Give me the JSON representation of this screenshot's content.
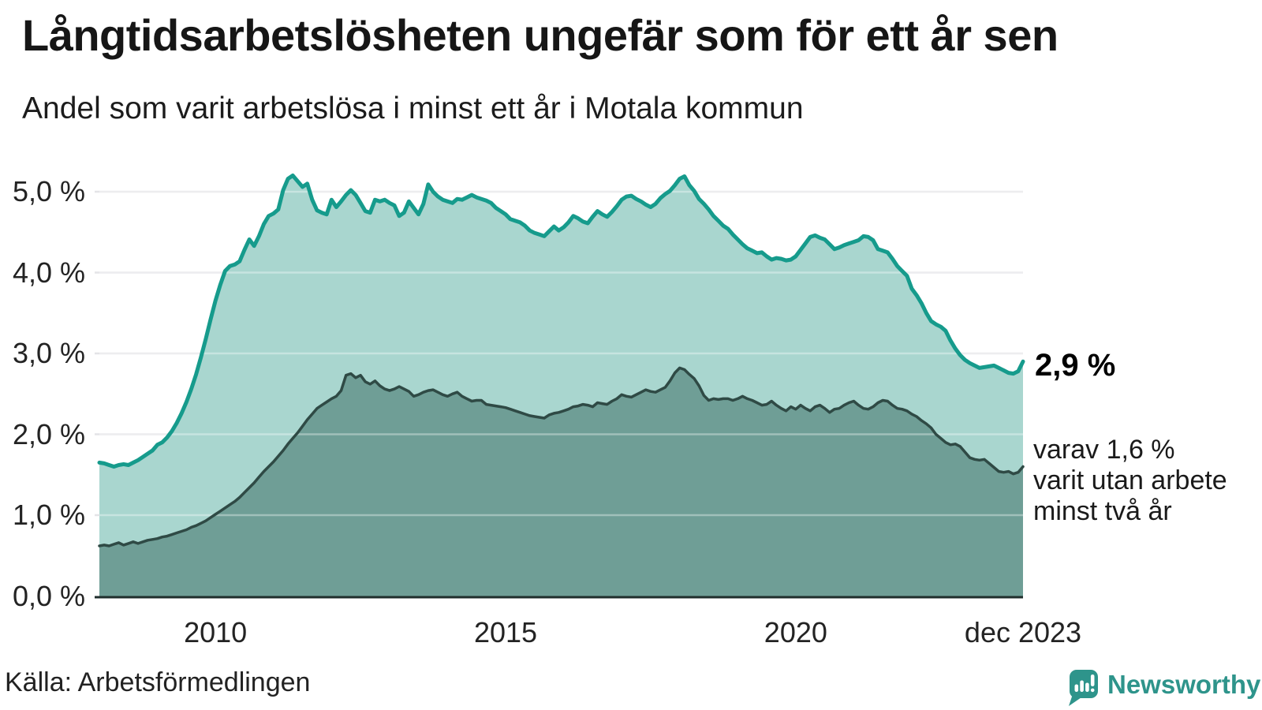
{
  "header": {
    "title": "Långtidsarbetslösheten ungefär som för ett år sen",
    "subtitle": "Andel som varit arbetslösa i minst ett år i Motala kommun"
  },
  "chart_data": {
    "type": "area",
    "title": "Långtidsarbetslösheten ungefär som för ett år sen",
    "subtitle": "Andel som varit arbetslösa i minst ett år i Motala kommun",
    "unit": "%",
    "frequency": "monthly",
    "x_start": "jan 2008",
    "x_end": "dec 2023",
    "ylim": [
      0,
      5.45
    ],
    "grid": true,
    "legend_position": "end-of-line-labels",
    "y_ticks": [
      {
        "value": 0,
        "label": "0,0 %"
      },
      {
        "value": 1,
        "label": "1,0 %"
      },
      {
        "value": 2,
        "label": "2,0 %"
      },
      {
        "value": 3,
        "label": "3,0 %"
      },
      {
        "value": 4,
        "label": "4,0 %"
      },
      {
        "value": 5,
        "label": "5,0 %"
      }
    ],
    "x_ticks": [
      {
        "month_index": 24,
        "label": "2010"
      },
      {
        "month_index": 84,
        "label": "2015"
      },
      {
        "month_index": 144,
        "label": "2020"
      },
      {
        "month_index": 191,
        "label": "dec 2023"
      }
    ],
    "series": [
      {
        "name": "Andel som varit arbetslösa i minst ett år",
        "end_label": "2,9 %",
        "final_value": 2.9,
        "color": "#169B8C",
        "fill": "#A9D6CF",
        "values": [
          1.65,
          1.64,
          1.62,
          1.6,
          1.62,
          1.63,
          1.62,
          1.65,
          1.68,
          1.72,
          1.76,
          1.8,
          1.87,
          1.9,
          1.96,
          2.04,
          2.14,
          2.26,
          2.4,
          2.56,
          2.74,
          2.95,
          3.18,
          3.42,
          3.65,
          3.85,
          4.02,
          4.08,
          4.1,
          4.14,
          4.28,
          4.41,
          4.33,
          4.45,
          4.6,
          4.7,
          4.73,
          4.78,
          5.02,
          5.16,
          5.2,
          5.13,
          5.06,
          5.1,
          4.9,
          4.77,
          4.74,
          4.72,
          4.9,
          4.81,
          4.88,
          4.96,
          5.02,
          4.96,
          4.86,
          4.76,
          4.74,
          4.9,
          4.88,
          4.9,
          4.86,
          4.83,
          4.7,
          4.74,
          4.88,
          4.8,
          4.72,
          4.85,
          5.09,
          5.0,
          4.94,
          4.9,
          4.88,
          4.86,
          4.91,
          4.9,
          4.93,
          4.96,
          4.93,
          4.91,
          4.89,
          4.86,
          4.8,
          4.76,
          4.72,
          4.66,
          4.64,
          4.62,
          4.58,
          4.52,
          4.49,
          4.47,
          4.45,
          4.51,
          4.57,
          4.52,
          4.56,
          4.62,
          4.7,
          4.67,
          4.63,
          4.61,
          4.69,
          4.76,
          4.72,
          4.69,
          4.75,
          4.82,
          4.9,
          4.94,
          4.95,
          4.91,
          4.88,
          4.84,
          4.81,
          4.85,
          4.92,
          4.97,
          5.01,
          5.08,
          5.16,
          5.19,
          5.08,
          5.01,
          4.91,
          4.85,
          4.78,
          4.7,
          4.64,
          4.58,
          4.54,
          4.47,
          4.41,
          4.35,
          4.3,
          4.27,
          4.24,
          4.25,
          4.2,
          4.16,
          4.18,
          4.17,
          4.15,
          4.16,
          4.2,
          4.28,
          4.36,
          4.44,
          4.46,
          4.43,
          4.41,
          4.35,
          4.29,
          4.31,
          4.34,
          4.36,
          4.38,
          4.4,
          4.45,
          4.44,
          4.4,
          4.29,
          4.27,
          4.25,
          4.17,
          4.08,
          4.02,
          3.96,
          3.8,
          3.72,
          3.62,
          3.5,
          3.4,
          3.36,
          3.33,
          3.28,
          3.16,
          3.06,
          2.98,
          2.92,
          2.88,
          2.85,
          2.82,
          2.83,
          2.84,
          2.85,
          2.82,
          2.79,
          2.76,
          2.75,
          2.78,
          2.9
        ]
      },
      {
        "name": "varav utan arbete minst två år",
        "end_label": "varav 1,6 % varit utan arbete minst två år",
        "final_value": 1.6,
        "color": "#2F4A45",
        "fill": "#6F9E96",
        "values": [
          0.62,
          0.63,
          0.62,
          0.64,
          0.66,
          0.63,
          0.65,
          0.67,
          0.65,
          0.67,
          0.69,
          0.7,
          0.71,
          0.73,
          0.74,
          0.76,
          0.78,
          0.8,
          0.82,
          0.85,
          0.87,
          0.9,
          0.93,
          0.97,
          1.01,
          1.05,
          1.09,
          1.13,
          1.17,
          1.22,
          1.28,
          1.34,
          1.4,
          1.47,
          1.54,
          1.6,
          1.66,
          1.73,
          1.8,
          1.88,
          1.95,
          2.02,
          2.1,
          2.18,
          2.25,
          2.32,
          2.36,
          2.4,
          2.44,
          2.47,
          2.54,
          2.73,
          2.75,
          2.7,
          2.73,
          2.65,
          2.62,
          2.66,
          2.6,
          2.56,
          2.54,
          2.56,
          2.59,
          2.56,
          2.53,
          2.47,
          2.49,
          2.52,
          2.54,
          2.55,
          2.52,
          2.49,
          2.47,
          2.5,
          2.52,
          2.47,
          2.44,
          2.41,
          2.42,
          2.42,
          2.37,
          2.36,
          2.35,
          2.34,
          2.33,
          2.31,
          2.29,
          2.27,
          2.25,
          2.23,
          2.22,
          2.21,
          2.2,
          2.24,
          2.26,
          2.27,
          2.29,
          2.31,
          2.34,
          2.35,
          2.37,
          2.36,
          2.34,
          2.39,
          2.38,
          2.37,
          2.41,
          2.44,
          2.49,
          2.47,
          2.46,
          2.49,
          2.52,
          2.55,
          2.53,
          2.52,
          2.55,
          2.58,
          2.66,
          2.76,
          2.82,
          2.8,
          2.74,
          2.69,
          2.6,
          2.48,
          2.42,
          2.44,
          2.43,
          2.44,
          2.44,
          2.42,
          2.44,
          2.47,
          2.44,
          2.42,
          2.39,
          2.36,
          2.37,
          2.41,
          2.36,
          2.32,
          2.29,
          2.34,
          2.31,
          2.36,
          2.32,
          2.29,
          2.34,
          2.36,
          2.32,
          2.27,
          2.31,
          2.32,
          2.36,
          2.39,
          2.41,
          2.36,
          2.32,
          2.31,
          2.34,
          2.39,
          2.42,
          2.41,
          2.36,
          2.32,
          2.31,
          2.29,
          2.25,
          2.22,
          2.17,
          2.13,
          2.08,
          2.0,
          1.95,
          1.9,
          1.87,
          1.88,
          1.85,
          1.78,
          1.71,
          1.69,
          1.68,
          1.69,
          1.64,
          1.59,
          1.54,
          1.53,
          1.54,
          1.51,
          1.53,
          1.6
        ]
      }
    ]
  },
  "annotations": {
    "primary": "2,9 %",
    "secondary_lines": [
      "varav 1,6 %",
      "varit utan arbete",
      "minst två år"
    ]
  },
  "footer": {
    "source": "Källa: Arbetsförmedlingen",
    "brand": "Newsworthy"
  },
  "colors": {
    "grid": "#E4E4E7",
    "grid_overlay": "rgba(255,255,255,0.35)",
    "baseline": "#1F2E2C",
    "brand": "#2E948B",
    "text": "#161616"
  }
}
